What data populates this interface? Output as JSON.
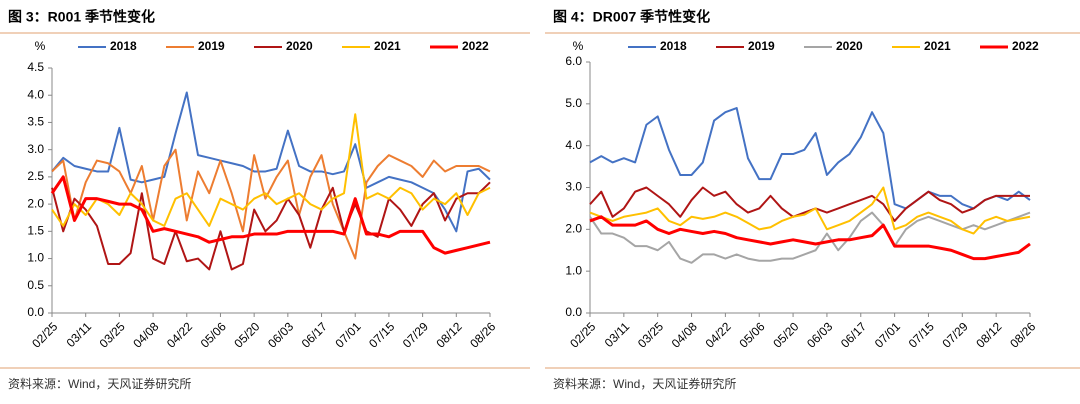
{
  "chart_data": [
    {
      "type": "line",
      "title": "图 3：R001 季节性变化",
      "source": "资料来源：Wind，天风证券研究所",
      "y_label": "%",
      "categories": [
        "02/25",
        null,
        null,
        "03/11",
        null,
        null,
        "03/25",
        null,
        null,
        "04/08",
        null,
        null,
        "04/22",
        null,
        null,
        "05/06",
        null,
        null,
        "05/20",
        null,
        null,
        "06/03",
        null,
        null,
        "06/17",
        null,
        null,
        "07/01",
        null,
        null,
        "07/15",
        null,
        null,
        "07/29",
        null,
        null,
        "08/12",
        null,
        null,
        "08/26"
      ],
      "ylim": [
        0,
        4.5
      ],
      "yticks": [
        {
          "value": 0,
          "label": "0.0"
        },
        0.5,
        {
          "value": 1,
          "label": "1.0"
        },
        1.5,
        {
          "value": 2,
          "label": "2.0"
        },
        2.5,
        {
          "value": 3,
          "label": "3.0"
        },
        3.5,
        {
          "value": 4,
          "label": "4.0"
        },
        4.5
      ],
      "series": [
        {
          "name": "2018",
          "color": "#4472c4",
          "values": [
            2.6,
            2.85,
            2.7,
            2.65,
            2.6,
            2.6,
            3.4,
            2.45,
            2.4,
            2.45,
            2.5,
            3.3,
            4.05,
            2.9,
            2.85,
            2.8,
            2.75,
            2.7,
            2.6,
            2.6,
            2.65,
            3.35,
            2.7,
            2.6,
            2.6,
            2.55,
            2.6,
            3.1,
            2.3,
            2.4,
            2.5,
            2.45,
            2.4,
            2.3,
            2.2,
            1.9,
            1.5,
            2.6,
            2.65,
            2.45
          ]
        },
        {
          "name": "2019",
          "color": "#ed7d31",
          "values": [
            2.6,
            2.8,
            1.7,
            2.4,
            2.8,
            2.75,
            2.6,
            2.2,
            2.7,
            1.7,
            2.7,
            3.0,
            1.7,
            2.6,
            2.2,
            2.8,
            2.2,
            1.5,
            2.9,
            2.1,
            2.5,
            2.8,
            1.8,
            2.5,
            2.9,
            2.0,
            1.5,
            1.0,
            2.4,
            2.7,
            2.9,
            2.8,
            2.7,
            2.5,
            2.8,
            2.6,
            2.7,
            2.7,
            2.7,
            2.6
          ]
        },
        {
          "name": "2020",
          "color": "#b01515",
          "values": [
            2.3,
            1.5,
            2.1,
            1.9,
            1.6,
            0.9,
            0.9,
            1.1,
            2.2,
            1.0,
            0.9,
            1.5,
            0.95,
            1.0,
            0.8,
            1.5,
            0.8,
            0.9,
            1.9,
            1.5,
            1.7,
            2.1,
            1.8,
            1.2,
            1.9,
            2.3,
            1.5,
            2.0,
            1.5,
            1.4,
            2.1,
            1.9,
            1.6,
            2.0,
            2.2,
            1.7,
            2.1,
            2.2,
            2.2,
            2.4
          ]
        },
        {
          "name": "2021",
          "color": "#ffc000",
          "values": [
            1.9,
            1.6,
            2.0,
            1.8,
            2.1,
            2.0,
            1.8,
            2.2,
            2.0,
            1.7,
            1.6,
            2.1,
            2.2,
            1.9,
            1.6,
            2.1,
            2.0,
            1.9,
            2.1,
            2.2,
            2.0,
            2.1,
            2.2,
            2.0,
            1.9,
            2.1,
            2.2,
            3.65,
            2.1,
            2.2,
            2.1,
            2.3,
            2.2,
            1.9,
            2.1,
            2.0,
            2.2,
            1.8,
            2.2,
            2.3
          ]
        },
        {
          "name": "2022",
          "color": "#ff0000",
          "values": [
            2.2,
            2.5,
            1.7,
            2.1,
            2.1,
            2.05,
            2.0,
            2.0,
            1.9,
            1.5,
            1.55,
            1.5,
            1.45,
            1.4,
            1.3,
            1.35,
            1.4,
            1.4,
            1.45,
            1.45,
            1.45,
            1.5,
            1.5,
            1.5,
            1.5,
            1.5,
            1.45,
            2.1,
            1.45,
            1.45,
            1.4,
            1.5,
            1.5,
            1.5,
            1.2,
            1.1,
            1.15,
            1.2,
            1.25,
            1.3
          ]
        }
      ]
    },
    {
      "type": "line",
      "title": "图 4：DR007 季节性变化",
      "source": "资料来源：Wind，天风证券研究所",
      "y_label": "%",
      "categories": [
        "02/25",
        null,
        null,
        "03/11",
        null,
        null,
        "03/25",
        null,
        null,
        "04/08",
        null,
        null,
        "04/22",
        null,
        null,
        "05/06",
        null,
        null,
        "05/20",
        null,
        null,
        "06/03",
        null,
        null,
        "06/17",
        null,
        null,
        "07/01",
        null,
        null,
        "07/15",
        null,
        null,
        "07/29",
        null,
        null,
        "08/12",
        null,
        null,
        "08/26"
      ],
      "ylim": [
        0,
        6
      ],
      "yticks": [
        {
          "value": 0,
          "label": "0.0"
        },
        {
          "value": 1,
          "label": "1.0"
        },
        {
          "value": 2,
          "label": "2.0"
        },
        {
          "value": 3,
          "label": "3.0"
        },
        {
          "value": 4,
          "label": "4.0"
        },
        {
          "value": 5,
          "label": "5.0"
        },
        {
          "value": 6,
          "label": "6.0"
        }
      ],
      "series": [
        {
          "name": "2018",
          "color": "#4472c4",
          "values": [
            3.6,
            3.75,
            3.6,
            3.7,
            3.6,
            4.5,
            4.7,
            3.9,
            3.3,
            3.3,
            3.6,
            4.6,
            4.8,
            4.9,
            3.7,
            3.2,
            3.2,
            3.8,
            3.8,
            3.9,
            4.3,
            3.3,
            3.6,
            3.8,
            4.2,
            4.8,
            4.3,
            2.6,
            2.5,
            2.7,
            2.9,
            2.8,
            2.8,
            2.6,
            2.5,
            2.7,
            2.8,
            2.7,
            2.9,
            2.7
          ]
        },
        {
          "name": "2019",
          "color": "#b01515",
          "values": [
            2.6,
            2.9,
            2.3,
            2.5,
            2.9,
            3.0,
            2.8,
            2.6,
            2.3,
            2.7,
            3.0,
            2.8,
            2.9,
            2.6,
            2.4,
            2.5,
            2.8,
            2.5,
            2.3,
            2.4,
            2.5,
            2.4,
            2.5,
            2.6,
            2.7,
            2.8,
            2.6,
            2.2,
            2.5,
            2.7,
            2.9,
            2.7,
            2.6,
            2.4,
            2.5,
            2.7,
            2.8,
            2.8,
            2.8,
            2.8
          ]
        },
        {
          "name": "2020",
          "color": "#a5a5a5",
          "values": [
            2.3,
            1.9,
            1.9,
            1.8,
            1.6,
            1.6,
            1.5,
            1.7,
            1.3,
            1.2,
            1.4,
            1.4,
            1.3,
            1.4,
            1.3,
            1.25,
            1.25,
            1.3,
            1.3,
            1.4,
            1.5,
            1.9,
            1.5,
            1.8,
            2.2,
            2.4,
            2.1,
            1.6,
            2.0,
            2.2,
            2.3,
            2.2,
            2.1,
            2.0,
            2.1,
            2.0,
            2.1,
            2.2,
            2.3,
            2.4
          ]
        },
        {
          "name": "2021",
          "color": "#ffc000",
          "values": [
            2.4,
            2.3,
            2.2,
            2.3,
            2.35,
            2.4,
            2.5,
            2.2,
            2.1,
            2.3,
            2.25,
            2.3,
            2.4,
            2.3,
            2.15,
            2.0,
            2.05,
            2.2,
            2.3,
            2.35,
            2.5,
            2.0,
            2.1,
            2.2,
            2.4,
            2.6,
            3.0,
            2.0,
            2.1,
            2.3,
            2.4,
            2.3,
            2.2,
            2.0,
            1.9,
            2.2,
            2.3,
            2.2,
            2.25,
            2.3
          ]
        },
        {
          "name": "2022",
          "color": "#ff0000",
          "values": [
            2.2,
            2.3,
            2.1,
            2.1,
            2.1,
            2.2,
            2.0,
            1.9,
            2.0,
            1.95,
            1.9,
            1.95,
            1.9,
            1.8,
            1.75,
            1.7,
            1.65,
            1.7,
            1.75,
            1.7,
            1.65,
            1.7,
            1.75,
            1.75,
            1.8,
            1.85,
            2.1,
            1.6,
            1.6,
            1.6,
            1.6,
            1.55,
            1.5,
            1.4,
            1.3,
            1.3,
            1.35,
            1.4,
            1.45,
            1.65
          ]
        }
      ]
    }
  ]
}
